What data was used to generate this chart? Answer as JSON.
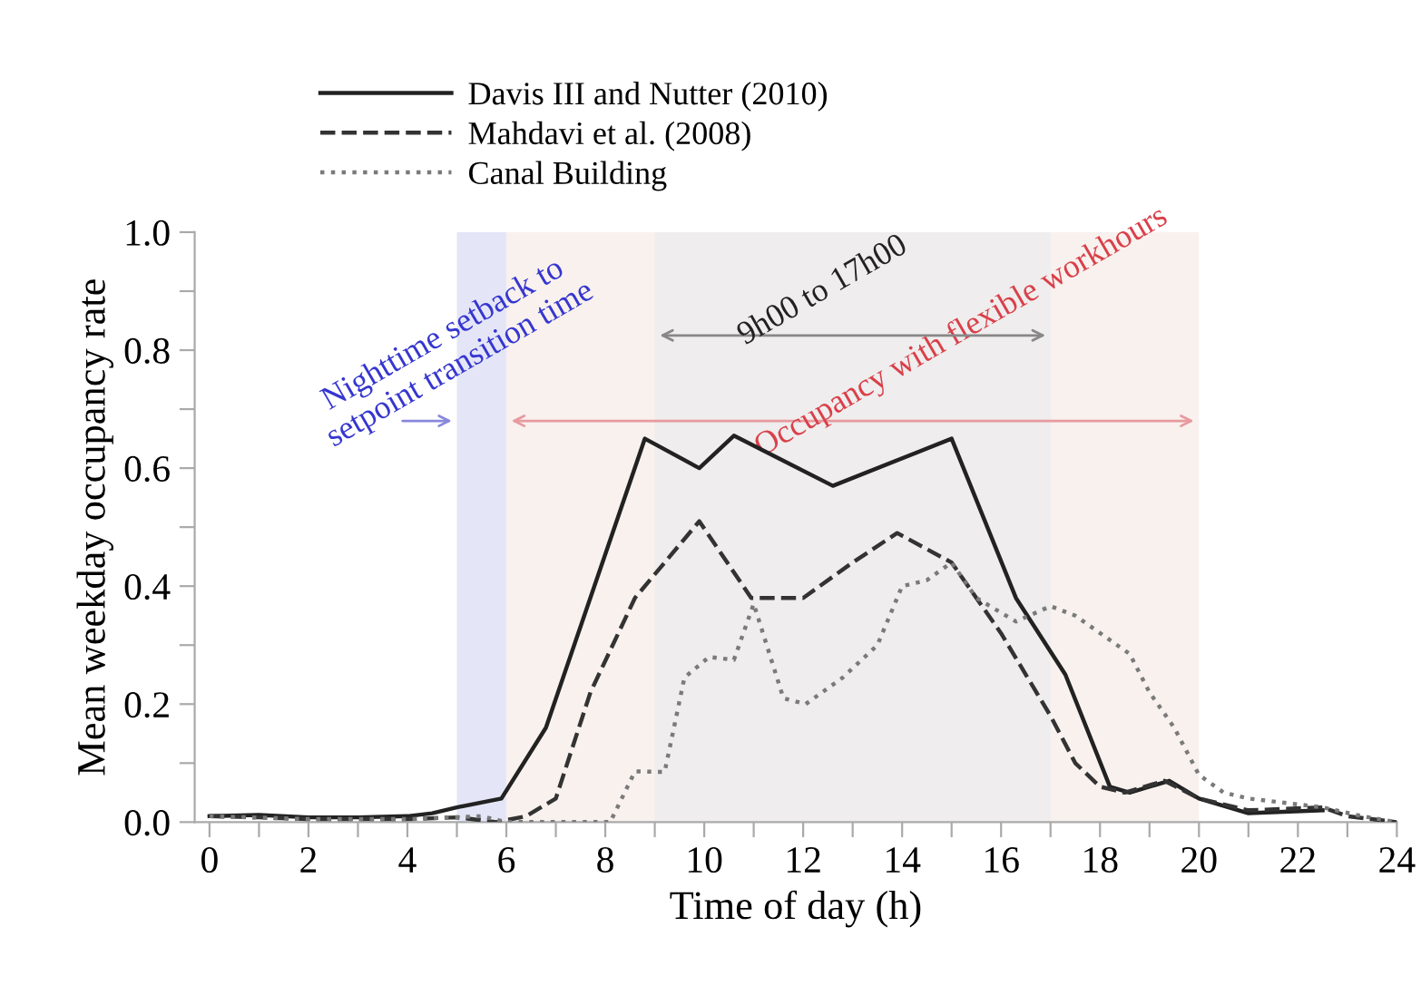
{
  "chart_data": {
    "type": "line",
    "xlabel": "Time of day (h)",
    "ylabel": "Mean weekday occupancy rate",
    "xlim": [
      -0.3,
      24
    ],
    "ylim": [
      0,
      1
    ],
    "xticks": [
      0,
      {
        "value": 1,
        "label": null
      },
      2,
      {
        "value": 3,
        "label": null
      },
      4,
      {
        "value": 5,
        "label": null
      },
      6,
      {
        "value": 7,
        "label": null
      },
      8,
      {
        "value": 9,
        "label": null
      },
      10,
      {
        "value": 11,
        "label": null
      },
      12,
      {
        "value": 13,
        "label": null
      },
      14,
      {
        "value": 15,
        "label": null
      },
      16,
      {
        "value": 17,
        "label": null
      },
      18,
      {
        "value": 19,
        "label": null
      },
      20,
      {
        "value": 21,
        "label": null
      },
      22,
      {
        "value": 23,
        "label": null
      },
      24
    ],
    "yticks": [
      {
        "value": 0,
        "label": "0.0"
      },
      {
        "value": 0.1,
        "label": null
      },
      0.2,
      {
        "value": 0.3,
        "label": null
      },
      0.4,
      {
        "value": 0.5,
        "label": null
      },
      0.6,
      {
        "value": 0.7,
        "label": null
      },
      0.8,
      {
        "value": 0.9,
        "label": null
      },
      {
        "value": 1,
        "label": "1.0"
      }
    ],
    "grid": false,
    "legend": "top",
    "marker": "none",
    "bands": [
      {
        "axis": "x",
        "from": 5,
        "to": 6,
        "label": "Nighttime setback to\nsetpoint transition time",
        "color": "#e4e6f7"
      },
      {
        "axis": "x",
        "from": 6,
        "to": 20,
        "label": "Occupancy with flexible workhours",
        "color": "#f8f1ee"
      },
      {
        "axis": "x",
        "from": 9,
        "to": 17,
        "label": "9h00 to 17h00",
        "color": "#efeded"
      }
    ],
    "series": [
      {
        "name": "Davis III and Nutter (2010)",
        "color": "#222222",
        "line_style": "solid",
        "x": [
          0,
          1,
          2,
          3,
          4,
          4.5,
          5,
          5.9,
          6.8,
          8.8,
          9.9,
          10.6,
          12.6,
          15.0,
          16.3,
          17.3,
          18.2,
          18.6,
          19.4,
          20,
          21,
          22.5
        ],
        "values": [
          0.01,
          0.012,
          0.008,
          0.008,
          0.01,
          0.015,
          0.025,
          0.04,
          0.16,
          0.65,
          0.6,
          0.655,
          0.57,
          0.65,
          0.38,
          0.25,
          0.06,
          0.05,
          0.07,
          0.04,
          0.015,
          0.02
        ]
      },
      {
        "name": "Mahdavi et al. (2008)",
        "color": "#333333",
        "line_style": "dashed",
        "x": [
          0,
          1,
          2,
          3,
          4,
          5,
          5.8,
          6.4,
          7.0,
          7.7,
          8.6,
          9.9,
          10.95,
          12,
          13,
          13.9,
          15,
          16,
          17,
          17.5,
          18,
          18.5,
          19.3,
          20,
          21,
          22.5,
          23,
          24
        ],
        "values": [
          0.01,
          0.008,
          0.005,
          0.005,
          0.005,
          0.008,
          0.0,
          0.01,
          0.04,
          0.22,
          0.38,
          0.51,
          0.38,
          0.38,
          0.44,
          0.49,
          0.44,
          0.32,
          0.18,
          0.1,
          0.06,
          0.05,
          0.07,
          0.04,
          0.02,
          0.025,
          0.01,
          0.0
        ]
      },
      {
        "name": "Canal Building",
        "color": "#7a7a7a",
        "line_style": "dotted",
        "x": [
          0,
          2,
          4,
          5.5,
          6,
          8.1,
          8.6,
          9.2,
          9.6,
          10.1,
          10.6,
          11.0,
          11.6,
          12.05,
          12.8,
          13.5,
          14,
          14.5,
          15,
          15.5,
          16.3,
          17.0,
          17.5,
          18.6,
          19,
          19.5,
          20,
          20.5,
          21,
          22,
          22.5,
          23.3,
          24
        ],
        "values": [
          0.01,
          0.005,
          0.005,
          0.01,
          0.0,
          0.0,
          0.086,
          0.085,
          0.245,
          0.28,
          0.275,
          0.37,
          0.21,
          0.2,
          0.245,
          0.3,
          0.4,
          0.41,
          0.44,
          0.38,
          0.34,
          0.366,
          0.35,
          0.285,
          0.22,
          0.16,
          0.08,
          0.05,
          0.04,
          0.03,
          0.025,
          0.01,
          0.0
        ]
      }
    ]
  }
}
